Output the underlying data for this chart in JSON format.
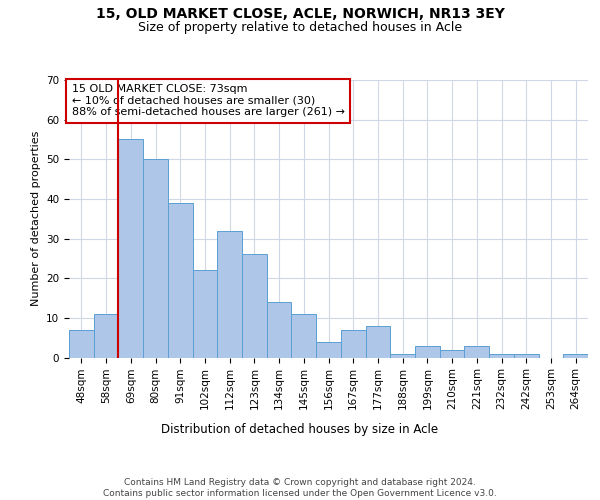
{
  "title1": "15, OLD MARKET CLOSE, ACLE, NORWICH, NR13 3EY",
  "title2": "Size of property relative to detached houses in Acle",
  "xlabel": "Distribution of detached houses by size in Acle",
  "ylabel": "Number of detached properties",
  "categories": [
    "48sqm",
    "58sqm",
    "69sqm",
    "80sqm",
    "91sqm",
    "102sqm",
    "112sqm",
    "123sqm",
    "134sqm",
    "145sqm",
    "156sqm",
    "167sqm",
    "177sqm",
    "188sqm",
    "199sqm",
    "210sqm",
    "221sqm",
    "232sqm",
    "242sqm",
    "253sqm",
    "264sqm"
  ],
  "values": [
    7,
    11,
    55,
    50,
    39,
    22,
    32,
    26,
    14,
    11,
    4,
    7,
    8,
    1,
    3,
    2,
    3,
    1,
    1,
    0,
    1
  ],
  "bar_color": "#aec6e8",
  "bar_edge_color": "#5a9fd4",
  "background_color": "#ffffff",
  "grid_color": "#d0d8e8",
  "annotation_line1": "15 OLD MARKET CLOSE: 73sqm",
  "annotation_line2": "← 10% of detached houses are smaller (30)",
  "annotation_line3": "88% of semi-detached houses are larger (261) →",
  "annotation_box_color": "#ffffff",
  "annotation_box_edge_color": "#cc0000",
  "vline_color": "#cc0000",
  "ylim": [
    0,
    70
  ],
  "yticks": [
    0,
    10,
    20,
    30,
    40,
    50,
    60,
    70
  ],
  "footnote": "Contains HM Land Registry data © Crown copyright and database right 2024.\nContains public sector information licensed under the Open Government Licence v3.0.",
  "title1_fontsize": 10,
  "title2_fontsize": 9,
  "xlabel_fontsize": 8.5,
  "ylabel_fontsize": 8,
  "tick_fontsize": 7.5,
  "annotation_fontsize": 8,
  "footnote_fontsize": 6.5
}
